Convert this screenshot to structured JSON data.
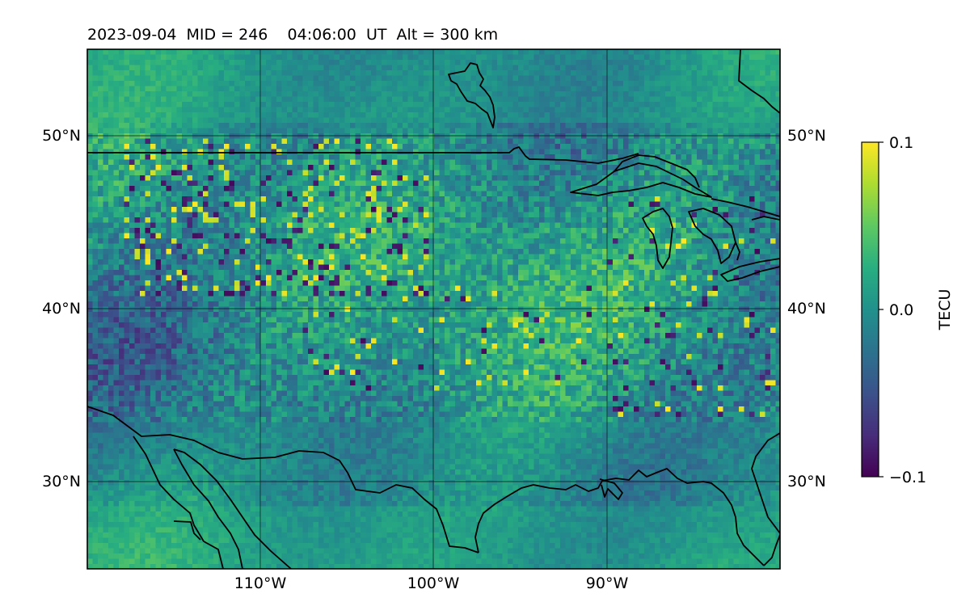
{
  "title": "2023-09-04  MID = 246    04:06:00  UT  Alt = 300 km",
  "map": {
    "lon_range": [
      -120,
      -80
    ],
    "lat_range": [
      25,
      55
    ],
    "x_ticks": [
      "110°W",
      "100°W",
      "90°W"
    ],
    "y_ticks_left": [
      "50°N",
      "40°N",
      "30°N"
    ],
    "y_ticks_right": [
      "50°N",
      "40°N",
      "30°N"
    ],
    "gridlines": true,
    "features": [
      "coastlines",
      "country-borders",
      "great-lakes"
    ]
  },
  "colorbar": {
    "label": "TECU",
    "colormap": "viridis",
    "ticks": [
      "0.1",
      "0.0",
      "−0.1"
    ],
    "vmin": -0.1,
    "vmax": 0.1
  }
}
